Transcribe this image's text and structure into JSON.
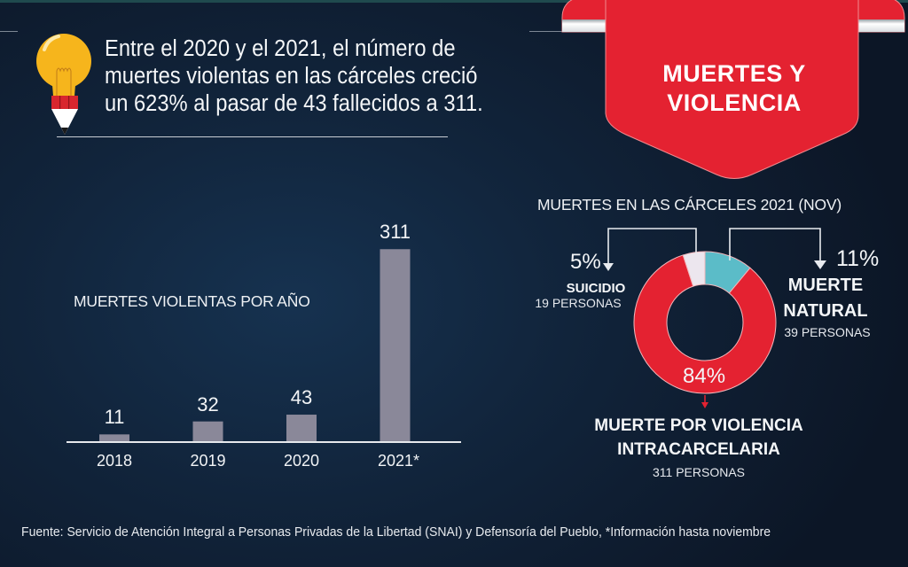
{
  "headline": {
    "lines": [
      "Entre el 2020 y el 2021, el número de",
      "muertes violentas en las cárceles creció",
      "un 623% al pasar de 43 fallecidos  a  311."
    ],
    "icon": "lightbulb-pencil-icon"
  },
  "banner": {
    "line1": "MUERTES Y",
    "line2": "VIOLENCIA",
    "color": "#e42231"
  },
  "chart_data": [
    {
      "type": "bar",
      "title": "MUERTES VIOLENTAS POR AÑO",
      "categories": [
        "2018",
        "2019",
        "2020",
        "2021*"
      ],
      "values": [
        11,
        32,
        43,
        311
      ],
      "value_labels": [
        "11",
        "32",
        "43",
        "311"
      ],
      "xlabel": "",
      "ylabel": "",
      "ylim": [
        0,
        330
      ],
      "grid": false,
      "bar_color": "#8a8899"
    },
    {
      "type": "pie",
      "title": "MUERTES EN LAS CÁRCELES 2021 (NOV)",
      "donut": true,
      "slices": [
        {
          "name": "MUERTE NATURAL",
          "percent": 11,
          "pct_label": "11%",
          "count_label": "39 PERSONAS",
          "name_lines": [
            "MUERTE",
            "NATURAL"
          ],
          "color": "#5bbcc8"
        },
        {
          "name": "MUERTE POR VIOLENCIA INTRACARCELARIA",
          "percent": 84,
          "pct_label": "84%",
          "count_label": "311 PERSONAS",
          "name_lines": [
            "MUERTE POR VIOLENCIA",
            "INTRACARCELARIA"
          ],
          "color": "#e42231"
        },
        {
          "name": "SUICIDIO",
          "percent": 5,
          "pct_label": "5%",
          "count_label": "19 PERSONAS",
          "name_lines": [
            "SUICIDIO"
          ],
          "color": "#ece6ee"
        }
      ]
    }
  ],
  "source": "Fuente: Servicio de Atención Integral a Personas Privadas de la Libertad (SNAI) y Defensoría del Pueblo, *Información hasta noviembre"
}
